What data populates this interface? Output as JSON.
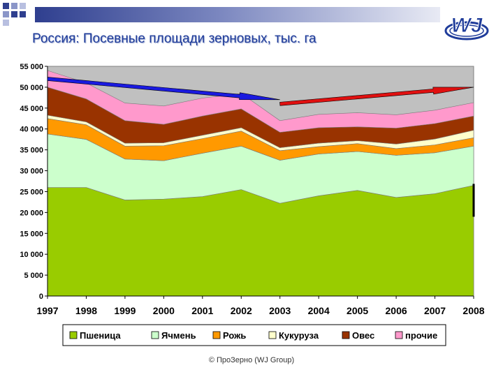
{
  "title": "Россия: Посевные площади зерновых, тыс. га",
  "copyright": "© ПроЗерно (WJ Group)",
  "logo": {
    "text": "WJ",
    "icon": "wj-group-logo"
  },
  "colors": {
    "title": "#1f3c9a",
    "down_arrow": "#1a1adf",
    "up_arrow": "#e01010"
  },
  "chart_data": {
    "type": "area",
    "stacked": true,
    "title": "",
    "xlabel": "",
    "ylabel": "",
    "ylim": [
      0,
      55000
    ],
    "yticks": [
      0,
      5000,
      10000,
      15000,
      20000,
      25000,
      30000,
      35000,
      40000,
      45000,
      50000,
      55000
    ],
    "ytick_labels": [
      "0",
      "5 000",
      "10 000",
      "15 000",
      "20 000",
      "25 000",
      "30 000",
      "35 000",
      "40 000",
      "45 000",
      "50 000",
      "55 000"
    ],
    "grid": false,
    "legend": "bottom",
    "x": [
      "1997",
      "1998",
      "1999",
      "2000",
      "2001",
      "2002",
      "2003",
      "2004",
      "2005",
      "2006",
      "2007",
      "2008"
    ],
    "series": [
      {
        "name": "Пшеница",
        "color": "#99cc00",
        "values": [
          26000,
          26000,
          23000,
          23200,
          23800,
          25500,
          22200,
          24000,
          25300,
          23600,
          24500,
          26500
        ]
      },
      {
        "name": "Ячмень",
        "color": "#ccffcc",
        "values": [
          12800,
          11500,
          9800,
          9200,
          10400,
          10400,
          10300,
          10000,
          9300,
          10100,
          9800,
          9400
        ]
      },
      {
        "name": "Рожь",
        "color": "#ff9900",
        "values": [
          3700,
          3500,
          3100,
          3600,
          3500,
          3600,
          2300,
          1800,
          1900,
          1600,
          1900,
          2000
        ]
      },
      {
        "name": "Кукуруза",
        "color": "#ffffcc",
        "values": [
          800,
          700,
          700,
          700,
          800,
          800,
          700,
          800,
          700,
          1100,
          1400,
          1800
        ]
      },
      {
        "name": "Овес",
        "color": "#993300",
        "values": [
          6700,
          5500,
          5400,
          4400,
          4600,
          4500,
          3700,
          3700,
          3300,
          3800,
          3700,
          3400
        ]
      },
      {
        "name": "прочие",
        "color": "#ff99cc",
        "values": [
          4000,
          3800,
          4200,
          4400,
          4300,
          3700,
          2800,
          3200,
          3400,
          3200,
          3200,
          3200
        ]
      }
    ],
    "annotations": [
      {
        "type": "arrow",
        "direction": "down",
        "from_x": "1997",
        "from_y": 52000,
        "to_x": "2003",
        "to_y": 47000,
        "color": "#1a1adf"
      },
      {
        "type": "arrow",
        "direction": "up",
        "from_x": "2003",
        "from_y": 46000,
        "to_x": "2008",
        "to_y": 50000,
        "color": "#e01010"
      }
    ]
  }
}
